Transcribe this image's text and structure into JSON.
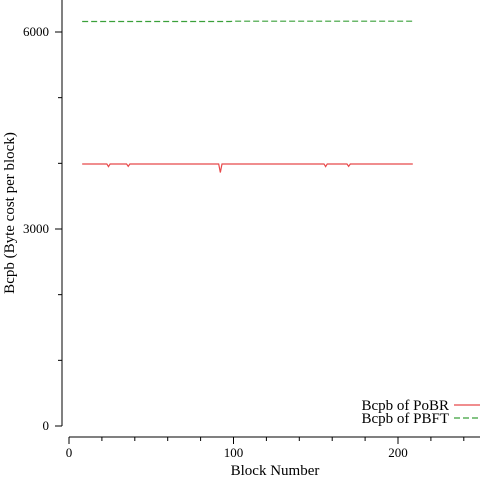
{
  "chart_data": {
    "type": "line",
    "title": "",
    "xlabel": "Block Number",
    "ylabel": "Bcpb (Byte cost per block)",
    "xlim": [
      0,
      250
    ],
    "ylim": [
      0,
      6000
    ],
    "x_ticks": [
      0,
      100,
      200
    ],
    "x_minor_ticks": [
      20,
      40,
      60,
      80,
      120,
      140,
      160,
      180,
      220,
      240
    ],
    "y_ticks": [
      0,
      3000,
      6000
    ],
    "y_minor_ticks": [
      1000,
      2000,
      4000,
      5000
    ],
    "grid": false,
    "legend_position": "bottom-right",
    "series": [
      {
        "name": "Bcpb of PoBR",
        "color": "#e8494a",
        "dash": "solid",
        "points": [
          [
            8,
            3990
          ],
          [
            23,
            3990
          ],
          [
            24,
            3950
          ],
          [
            25,
            3990
          ],
          [
            35,
            3990
          ],
          [
            36,
            3955
          ],
          [
            37,
            3990
          ],
          [
            91,
            3990
          ],
          [
            92,
            3860
          ],
          [
            93,
            3990
          ],
          [
            155,
            3990
          ],
          [
            156,
            3950
          ],
          [
            157,
            3990
          ],
          [
            169,
            3990
          ],
          [
            170,
            3955
          ],
          [
            171,
            3990
          ],
          [
            209,
            3990
          ]
        ]
      },
      {
        "name": "Bcpb of PBFT",
        "color": "#3aa03a",
        "dash": "dashed",
        "points": [
          [
            8,
            6160
          ],
          [
            98,
            6160
          ],
          [
            100,
            6165
          ],
          [
            209,
            6165
          ]
        ]
      }
    ]
  }
}
